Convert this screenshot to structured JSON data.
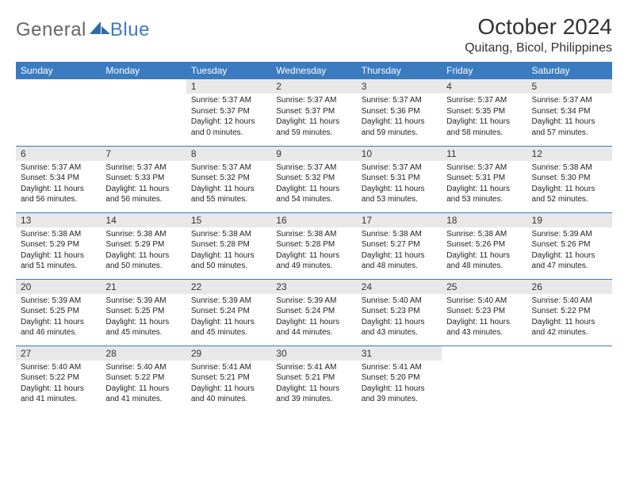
{
  "brand": {
    "word1": "General",
    "word2": "Blue"
  },
  "title": "October 2024",
  "location": "Quitang, Bicol, Philippines",
  "colors": {
    "header_bg": "#3b7bbf",
    "header_text": "#ffffff",
    "daynum_bg": "#e8e8e8",
    "row_border": "#3b7bbf",
    "page_bg": "#ffffff"
  },
  "typography": {
    "title_fontsize": 28,
    "location_fontsize": 16,
    "weekday_fontsize": 12,
    "daynum_fontsize": 12,
    "body_fontsize": 10
  },
  "weekdays": [
    "Sunday",
    "Monday",
    "Tuesday",
    "Wednesday",
    "Thursday",
    "Friday",
    "Saturday"
  ],
  "weeks": [
    [
      {
        "blank": true
      },
      {
        "blank": true
      },
      {
        "day": "1",
        "sunrise": "Sunrise: 5:37 AM",
        "sunset": "Sunset: 5:37 PM",
        "daylight1": "Daylight: 12 hours",
        "daylight2": "and 0 minutes."
      },
      {
        "day": "2",
        "sunrise": "Sunrise: 5:37 AM",
        "sunset": "Sunset: 5:37 PM",
        "daylight1": "Daylight: 11 hours",
        "daylight2": "and 59 minutes."
      },
      {
        "day": "3",
        "sunrise": "Sunrise: 5:37 AM",
        "sunset": "Sunset: 5:36 PM",
        "daylight1": "Daylight: 11 hours",
        "daylight2": "and 59 minutes."
      },
      {
        "day": "4",
        "sunrise": "Sunrise: 5:37 AM",
        "sunset": "Sunset: 5:35 PM",
        "daylight1": "Daylight: 11 hours",
        "daylight2": "and 58 minutes."
      },
      {
        "day": "5",
        "sunrise": "Sunrise: 5:37 AM",
        "sunset": "Sunset: 5:34 PM",
        "daylight1": "Daylight: 11 hours",
        "daylight2": "and 57 minutes."
      }
    ],
    [
      {
        "day": "6",
        "sunrise": "Sunrise: 5:37 AM",
        "sunset": "Sunset: 5:34 PM",
        "daylight1": "Daylight: 11 hours",
        "daylight2": "and 56 minutes."
      },
      {
        "day": "7",
        "sunrise": "Sunrise: 5:37 AM",
        "sunset": "Sunset: 5:33 PM",
        "daylight1": "Daylight: 11 hours",
        "daylight2": "and 56 minutes."
      },
      {
        "day": "8",
        "sunrise": "Sunrise: 5:37 AM",
        "sunset": "Sunset: 5:32 PM",
        "daylight1": "Daylight: 11 hours",
        "daylight2": "and 55 minutes."
      },
      {
        "day": "9",
        "sunrise": "Sunrise: 5:37 AM",
        "sunset": "Sunset: 5:32 PM",
        "daylight1": "Daylight: 11 hours",
        "daylight2": "and 54 minutes."
      },
      {
        "day": "10",
        "sunrise": "Sunrise: 5:37 AM",
        "sunset": "Sunset: 5:31 PM",
        "daylight1": "Daylight: 11 hours",
        "daylight2": "and 53 minutes."
      },
      {
        "day": "11",
        "sunrise": "Sunrise: 5:37 AM",
        "sunset": "Sunset: 5:31 PM",
        "daylight1": "Daylight: 11 hours",
        "daylight2": "and 53 minutes."
      },
      {
        "day": "12",
        "sunrise": "Sunrise: 5:38 AM",
        "sunset": "Sunset: 5:30 PM",
        "daylight1": "Daylight: 11 hours",
        "daylight2": "and 52 minutes."
      }
    ],
    [
      {
        "day": "13",
        "sunrise": "Sunrise: 5:38 AM",
        "sunset": "Sunset: 5:29 PM",
        "daylight1": "Daylight: 11 hours",
        "daylight2": "and 51 minutes."
      },
      {
        "day": "14",
        "sunrise": "Sunrise: 5:38 AM",
        "sunset": "Sunset: 5:29 PM",
        "daylight1": "Daylight: 11 hours",
        "daylight2": "and 50 minutes."
      },
      {
        "day": "15",
        "sunrise": "Sunrise: 5:38 AM",
        "sunset": "Sunset: 5:28 PM",
        "daylight1": "Daylight: 11 hours",
        "daylight2": "and 50 minutes."
      },
      {
        "day": "16",
        "sunrise": "Sunrise: 5:38 AM",
        "sunset": "Sunset: 5:28 PM",
        "daylight1": "Daylight: 11 hours",
        "daylight2": "and 49 minutes."
      },
      {
        "day": "17",
        "sunrise": "Sunrise: 5:38 AM",
        "sunset": "Sunset: 5:27 PM",
        "daylight1": "Daylight: 11 hours",
        "daylight2": "and 48 minutes."
      },
      {
        "day": "18",
        "sunrise": "Sunrise: 5:38 AM",
        "sunset": "Sunset: 5:26 PM",
        "daylight1": "Daylight: 11 hours",
        "daylight2": "and 48 minutes."
      },
      {
        "day": "19",
        "sunrise": "Sunrise: 5:39 AM",
        "sunset": "Sunset: 5:26 PM",
        "daylight1": "Daylight: 11 hours",
        "daylight2": "and 47 minutes."
      }
    ],
    [
      {
        "day": "20",
        "sunrise": "Sunrise: 5:39 AM",
        "sunset": "Sunset: 5:25 PM",
        "daylight1": "Daylight: 11 hours",
        "daylight2": "and 46 minutes."
      },
      {
        "day": "21",
        "sunrise": "Sunrise: 5:39 AM",
        "sunset": "Sunset: 5:25 PM",
        "daylight1": "Daylight: 11 hours",
        "daylight2": "and 45 minutes."
      },
      {
        "day": "22",
        "sunrise": "Sunrise: 5:39 AM",
        "sunset": "Sunset: 5:24 PM",
        "daylight1": "Daylight: 11 hours",
        "daylight2": "and 45 minutes."
      },
      {
        "day": "23",
        "sunrise": "Sunrise: 5:39 AM",
        "sunset": "Sunset: 5:24 PM",
        "daylight1": "Daylight: 11 hours",
        "daylight2": "and 44 minutes."
      },
      {
        "day": "24",
        "sunrise": "Sunrise: 5:40 AM",
        "sunset": "Sunset: 5:23 PM",
        "daylight1": "Daylight: 11 hours",
        "daylight2": "and 43 minutes."
      },
      {
        "day": "25",
        "sunrise": "Sunrise: 5:40 AM",
        "sunset": "Sunset: 5:23 PM",
        "daylight1": "Daylight: 11 hours",
        "daylight2": "and 43 minutes."
      },
      {
        "day": "26",
        "sunrise": "Sunrise: 5:40 AM",
        "sunset": "Sunset: 5:22 PM",
        "daylight1": "Daylight: 11 hours",
        "daylight2": "and 42 minutes."
      }
    ],
    [
      {
        "day": "27",
        "sunrise": "Sunrise: 5:40 AM",
        "sunset": "Sunset: 5:22 PM",
        "daylight1": "Daylight: 11 hours",
        "daylight2": "and 41 minutes."
      },
      {
        "day": "28",
        "sunrise": "Sunrise: 5:40 AM",
        "sunset": "Sunset: 5:22 PM",
        "daylight1": "Daylight: 11 hours",
        "daylight2": "and 41 minutes."
      },
      {
        "day": "29",
        "sunrise": "Sunrise: 5:41 AM",
        "sunset": "Sunset: 5:21 PM",
        "daylight1": "Daylight: 11 hours",
        "daylight2": "and 40 minutes."
      },
      {
        "day": "30",
        "sunrise": "Sunrise: 5:41 AM",
        "sunset": "Sunset: 5:21 PM",
        "daylight1": "Daylight: 11 hours",
        "daylight2": "and 39 minutes."
      },
      {
        "day": "31",
        "sunrise": "Sunrise: 5:41 AM",
        "sunset": "Sunset: 5:20 PM",
        "daylight1": "Daylight: 11 hours",
        "daylight2": "and 39 minutes."
      },
      {
        "blank": true
      },
      {
        "blank": true
      }
    ]
  ]
}
